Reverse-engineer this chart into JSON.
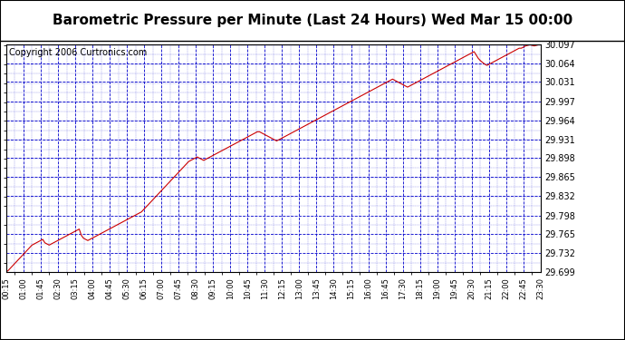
{
  "title": "Barometric Pressure per Minute (Last 24 Hours) Wed Mar 15 00:00",
  "copyright_text": "Copyright 2006 Curtronics.com",
  "y_min": 29.699,
  "y_max": 30.097,
  "y_ticks": [
    29.699,
    29.732,
    29.765,
    29.798,
    29.832,
    29.865,
    29.898,
    29.931,
    29.964,
    29.997,
    30.031,
    30.064,
    30.097
  ],
  "x_tick_labels": [
    "00:15",
    "01:00",
    "01:45",
    "02:30",
    "03:15",
    "04:00",
    "04:45",
    "05:30",
    "06:15",
    "07:00",
    "07:45",
    "08:30",
    "09:15",
    "10:00",
    "10:45",
    "11:30",
    "12:15",
    "13:00",
    "13:45",
    "14:30",
    "15:15",
    "16:00",
    "16:45",
    "17:30",
    "18:15",
    "19:00",
    "19:45",
    "20:30",
    "21:15",
    "22:00",
    "22:45",
    "23:30"
  ],
  "line_color": "#cc0000",
  "grid_color": "#0000cc",
  "background_color": "#ffffff",
  "plot_bg_color": "#ffffff",
  "title_fontsize": 11,
  "copyright_fontsize": 7,
  "pressure_data": [
    29.699,
    29.702,
    29.706,
    29.71,
    29.714,
    29.718,
    29.722,
    29.726,
    29.73,
    29.734,
    29.738,
    29.742,
    29.746,
    29.748,
    29.75,
    29.752,
    29.754,
    29.756,
    29.75,
    29.748,
    29.746,
    29.748,
    29.75,
    29.752,
    29.754,
    29.756,
    29.758,
    29.76,
    29.762,
    29.764,
    29.766,
    29.768,
    29.77,
    29.772,
    29.774,
    29.763,
    29.758,
    29.756,
    29.754,
    29.756,
    29.758,
    29.76,
    29.762,
    29.764,
    29.766,
    29.768,
    29.77,
    29.772,
    29.774,
    29.776,
    29.778,
    29.78,
    29.782,
    29.784,
    29.786,
    29.788,
    29.79,
    29.792,
    29.794,
    29.796,
    29.798,
    29.8,
    29.802,
    29.804,
    29.808,
    29.812,
    29.816,
    29.82,
    29.824,
    29.828,
    29.832,
    29.836,
    29.84,
    29.844,
    29.848,
    29.852,
    29.856,
    29.86,
    29.864,
    29.868,
    29.872,
    29.876,
    29.88,
    29.884,
    29.888,
    29.892,
    29.894,
    29.896,
    29.898,
    29.9,
    29.898,
    29.896,
    29.894,
    29.896,
    29.898,
    29.9,
    29.902,
    29.904,
    29.906,
    29.908,
    29.91,
    29.912,
    29.914,
    29.916,
    29.918,
    29.92,
    29.922,
    29.924,
    29.926,
    29.928,
    29.93,
    29.932,
    29.934,
    29.936,
    29.938,
    29.94,
    29.942,
    29.944,
    29.944,
    29.942,
    29.94,
    29.938,
    29.936,
    29.934,
    29.932,
    29.93,
    29.928,
    29.93,
    29.932,
    29.934,
    29.936,
    29.938,
    29.94,
    29.942,
    29.944,
    29.946,
    29.948,
    29.95,
    29.952,
    29.954,
    29.956,
    29.958,
    29.96,
    29.962,
    29.964,
    29.966,
    29.968,
    29.97,
    29.972,
    29.974,
    29.976,
    29.978,
    29.98,
    29.982,
    29.984,
    29.986,
    29.988,
    29.99,
    29.992,
    29.994,
    29.996,
    29.998,
    30.0,
    30.002,
    30.004,
    30.006,
    30.008,
    30.01,
    30.012,
    30.014,
    30.016,
    30.018,
    30.02,
    30.022,
    30.024,
    30.026,
    30.028,
    30.03,
    30.032,
    30.034,
    30.036,
    30.034,
    30.032,
    30.03,
    30.028,
    30.026,
    30.024,
    30.022,
    30.024,
    30.026,
    30.028,
    30.03,
    30.032,
    30.034,
    30.036,
    30.038,
    30.04,
    30.042,
    30.044,
    30.046,
    30.048,
    30.05,
    30.052,
    30.054,
    30.056,
    30.058,
    30.06,
    30.062,
    30.064,
    30.066,
    30.068,
    30.07,
    30.072,
    30.074,
    30.076,
    30.078,
    30.08,
    30.082,
    30.084,
    30.078,
    30.072,
    30.068,
    30.065,
    30.062,
    30.06,
    30.062,
    30.064,
    30.066,
    30.068,
    30.07,
    30.072,
    30.074,
    30.076,
    30.078,
    30.08,
    30.082,
    30.084,
    30.086,
    30.088,
    30.09,
    30.09,
    30.092,
    30.094,
    30.095,
    30.096,
    30.095,
    30.094,
    30.095,
    30.096,
    30.097
  ]
}
